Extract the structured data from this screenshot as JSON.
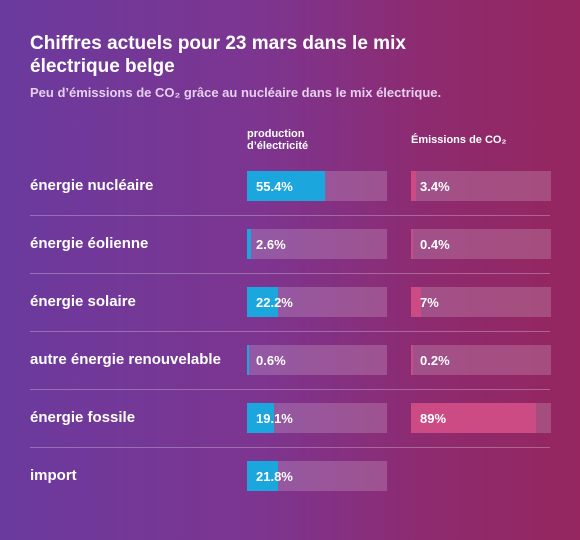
{
  "title": "Chiffres actuels pour 23 mars dans le mix électrique belge",
  "subtitle": "Peu d’émissions de CO₂ grâce au nucléaire dans le mix électrique.",
  "column_headers": {
    "production": "production d’électricité",
    "emissions": "Émissions de CO₂"
  },
  "colors": {
    "production_fill": "#1ba6de",
    "emissions_fill": "#cc4b84",
    "track": "rgba(255,255,255,0.18)"
  },
  "chart_data": {
    "type": "bar",
    "title": "Chiffres actuels pour 23 mars dans le mix électrique belge",
    "subtitle": "Peu d’émissions de CO₂ grâce au nucléaire dans le mix électrique.",
    "categories": [
      "énergie nucléaire",
      "énergie éolienne",
      "énergie solaire",
      "autre énergie renouvelable",
      "énergie fossile",
      "import"
    ],
    "xlim": [
      0,
      100
    ],
    "series": [
      {
        "name": "production d’électricité",
        "values": [
          55.4,
          2.6,
          22.2,
          0.6,
          19.1,
          21.8
        ],
        "labels": [
          "55.4%",
          "2.6%",
          "22.2%",
          "0.6%",
          "19.1%",
          "21.8%"
        ]
      },
      {
        "name": "Émissions de CO₂",
        "values": [
          3.4,
          0.4,
          7,
          0.2,
          89,
          null
        ],
        "labels": [
          "3.4%",
          "0.4%",
          "7%",
          "0.2%",
          "89%",
          null
        ]
      }
    ]
  }
}
